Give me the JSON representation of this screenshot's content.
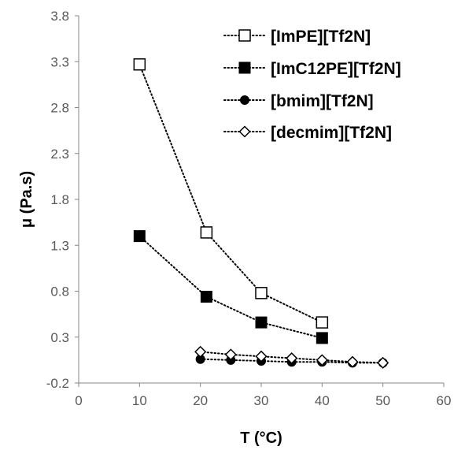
{
  "chart_data": {
    "type": "scatter",
    "xlabel": "T (°C)",
    "ylabel": "μ (Pa.s)",
    "xlim": [
      0,
      60
    ],
    "ylim": [
      -0.2,
      3.8
    ],
    "x_ticks": [
      "0",
      "10",
      "20",
      "30",
      "40",
      "50",
      "60"
    ],
    "y_ticks": [
      "-0.2",
      "0.3",
      "0.8",
      "1.3",
      "1.8",
      "2.3",
      "2.8",
      "3.3",
      "3.8"
    ],
    "grid": false,
    "legend_position": "top-right",
    "series": [
      {
        "name": "[ImPE][Tf2N]",
        "marker": "square-open",
        "line": "dotted",
        "x": [
          10,
          21,
          30,
          40
        ],
        "y": [
          3.27,
          1.44,
          0.78,
          0.46
        ]
      },
      {
        "name": "[ImC12PE][Tf2N]",
        "marker": "square-filled",
        "line": "dotted",
        "x": [
          10,
          21,
          30,
          40
        ],
        "y": [
          1.4,
          0.74,
          0.46,
          0.29
        ]
      },
      {
        "name": "[bmim][Tf2N]",
        "marker": "circle-filled",
        "line": "dotted",
        "x": [
          20,
          25,
          30,
          35,
          40,
          45,
          50
        ],
        "y": [
          0.06,
          0.05,
          0.04,
          0.03,
          0.03,
          0.02,
          0.02
        ]
      },
      {
        "name": "[decmim][Tf2N]",
        "marker": "diamond-open",
        "line": "dotted",
        "x": [
          20,
          25,
          30,
          35,
          40,
          45,
          50
        ],
        "y": [
          0.14,
          0.11,
          0.09,
          0.07,
          0.05,
          0.03,
          0.02
        ]
      }
    ]
  }
}
